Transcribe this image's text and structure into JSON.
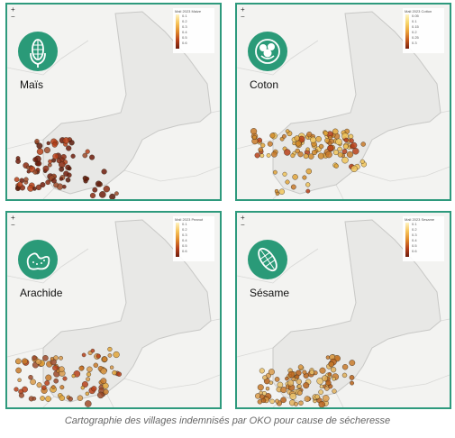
{
  "caption": "Cartographie des villages indemnisés par OKO pour cause de sécheresse",
  "zoom": {
    "in": "+",
    "out": "−"
  },
  "panels": [
    {
      "label": "Maïs",
      "icon": "corn-icon",
      "legend_title": "Mali 2023 Maize",
      "legend_ticks": [
        "0.1",
        "0.2",
        "0.3",
        "0.4",
        "0.5",
        "0.6"
      ],
      "legend_colors": [
        "#fff4c2",
        "#f7c45a",
        "#e08a2c",
        "#b7411a",
        "#6e1c0c"
      ],
      "point_colors": [
        "#8a2a12",
        "#6e1c0c",
        "#b7411a",
        "#5a1a0a",
        "#9c4a2a"
      ]
    },
    {
      "label": "Coton",
      "icon": "cotton-icon",
      "legend_title": "Mali 2023 Cotton",
      "legend_ticks": [
        "0.05",
        "0.1",
        "0.15",
        "0.2",
        "0.25",
        "0.3"
      ],
      "legend_colors": [
        "#fff4c2",
        "#f7d56a",
        "#eba23a",
        "#c55a1e",
        "#7a200c"
      ],
      "point_colors": [
        "#e0a53a",
        "#d08a2a",
        "#f0c45a",
        "#b7411a",
        "#c87a2a"
      ]
    },
    {
      "label": "Arachide",
      "icon": "peanut-icon",
      "legend_title": "Mali 2023 Peanut",
      "legend_ticks": [
        "0.1",
        "0.2",
        "0.3",
        "0.4",
        "0.5",
        "0.6"
      ],
      "legend_colors": [
        "#fff4c2",
        "#f7c45a",
        "#e08a2c",
        "#b7411a",
        "#6e1c0c"
      ],
      "point_colors": [
        "#c87a2a",
        "#e0a53a",
        "#b7411a",
        "#9c4a2a",
        "#d89a4a"
      ]
    },
    {
      "label": "Sésame",
      "icon": "sesame-icon",
      "legend_title": "Mali 2023 Sesame",
      "legend_ticks": [
        "0.1",
        "0.2",
        "0.3",
        "0.4",
        "0.5",
        "0.6"
      ],
      "legend_colors": [
        "#fff4c2",
        "#f7c45a",
        "#e08a2c",
        "#b7411a",
        "#6e1c0c"
      ],
      "point_colors": [
        "#d89a4a",
        "#e0b05a",
        "#c87a2a",
        "#b7611a",
        "#eac26a"
      ]
    }
  ],
  "colors": {
    "border": "#2e9a7d",
    "icon_bg": "#2a9a78",
    "land": "#e8e8e6",
    "background": "#f3f3f1"
  }
}
